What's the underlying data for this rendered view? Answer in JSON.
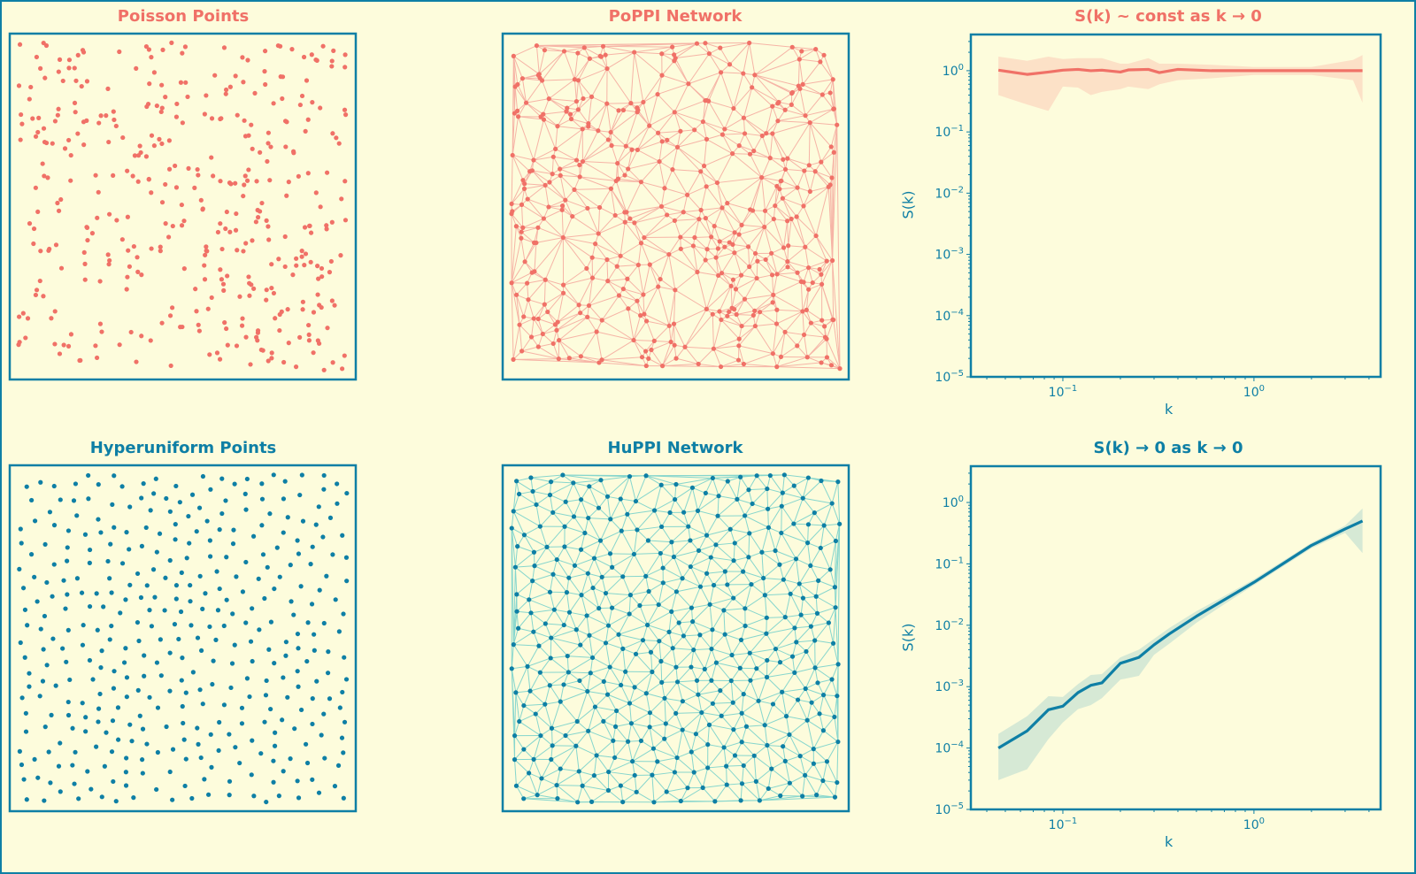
{
  "colors": {
    "background": "#fdfcdc",
    "poisson": "#f07167",
    "poisson_edge": "#f6b4a6",
    "poisson_band": "#fcdcc3",
    "hyperuniform": "#0e7fa5",
    "hu_edge": "#86d6cd",
    "hu_band": "#cfe5d3",
    "frame": "#0e7fa5"
  },
  "chart_data": [
    {
      "type": "scatter",
      "title": "Poisson Points",
      "point_count": 400,
      "distribution": "uniform random (Poisson)",
      "axes_visible": false
    },
    {
      "type": "network",
      "title": "PoPPI Network",
      "point_count": 400,
      "edges": "Delaunay triangulation",
      "axes_visible": false
    },
    {
      "type": "line",
      "title": "S(k) ~ const as k → 0",
      "xlabel": "k",
      "ylabel": "S(k)",
      "xscale": "log",
      "yscale": "log",
      "xlim": [
        0.033,
        4.6
      ],
      "ylim": [
        1e-05,
        3.9
      ],
      "xticks": [
        {
          "value": 0.1,
          "base": "10",
          "exp": "−1"
        },
        {
          "value": 1,
          "base": "10",
          "exp": "0"
        }
      ],
      "yticks": [
        {
          "value": 1,
          "base": "10",
          "exp": "0"
        },
        {
          "value": 0.1,
          "base": "10",
          "exp": "−1"
        },
        {
          "value": 0.01,
          "base": "10",
          "exp": "−2"
        },
        {
          "value": 0.001,
          "base": "10",
          "exp": "−3"
        },
        {
          "value": 0.0001,
          "base": "10",
          "exp": "−4"
        },
        {
          "value": 1e-05,
          "base": "10",
          "exp": "−5"
        }
      ],
      "series": [
        {
          "k": [
            0.046,
            0.065,
            0.084,
            0.1,
            0.12,
            0.14,
            0.16,
            0.2,
            0.22,
            0.28,
            0.32,
            0.4,
            0.6,
            1,
            2,
            3.3,
            3.7
          ],
          "S": [
            1.02,
            0.87,
            0.95,
            1.02,
            1.05,
            1.0,
            1.02,
            0.95,
            1.03,
            1.05,
            0.93,
            1.05,
            1.0,
            1.0,
            1.0,
            1.0,
            1.0
          ],
          "lower": [
            0.4,
            0.28,
            0.22,
            0.55,
            0.53,
            0.4,
            0.45,
            0.5,
            0.55,
            0.5,
            0.6,
            0.7,
            0.75,
            0.85,
            0.85,
            0.7,
            0.3
          ],
          "upper": [
            1.7,
            1.45,
            1.7,
            1.55,
            1.6,
            1.6,
            1.6,
            1.3,
            1.3,
            1.6,
            1.3,
            1.3,
            1.25,
            1.15,
            1.15,
            1.5,
            1.8
          ]
        }
      ]
    },
    {
      "type": "scatter",
      "title": "Hyperuniform Points",
      "point_count": 380,
      "distribution": "hyperuniform",
      "axes_visible": false
    },
    {
      "type": "network",
      "title": "HuPPI Network",
      "point_count": 380,
      "edges": "Delaunay triangulation",
      "axes_visible": false
    },
    {
      "type": "line",
      "title": "S(k) → 0 as k → 0",
      "xlabel": "k",
      "ylabel": "S(k)",
      "xscale": "log",
      "yscale": "log",
      "xlim": [
        0.033,
        4.6
      ],
      "ylim": [
        1e-05,
        3.9
      ],
      "xticks": [
        {
          "value": 0.1,
          "base": "10",
          "exp": "−1"
        },
        {
          "value": 1,
          "base": "10",
          "exp": "0"
        }
      ],
      "yticks": [
        {
          "value": 1,
          "base": "10",
          "exp": "0"
        },
        {
          "value": 0.1,
          "base": "10",
          "exp": "−1"
        },
        {
          "value": 0.01,
          "base": "10",
          "exp": "−2"
        },
        {
          "value": 0.001,
          "base": "10",
          "exp": "−3"
        },
        {
          "value": 0.0001,
          "base": "10",
          "exp": "−4"
        },
        {
          "value": 1e-05,
          "base": "10",
          "exp": "−5"
        }
      ],
      "series": [
        {
          "k": [
            0.046,
            0.065,
            0.084,
            0.1,
            0.12,
            0.14,
            0.16,
            0.2,
            0.25,
            0.3,
            0.36,
            0.5,
            0.7,
            1,
            2,
            3,
            3.7
          ],
          "S": [
            0.0001,
            0.00019,
            0.00042,
            0.00048,
            0.0008,
            0.00105,
            0.00115,
            0.0024,
            0.003,
            0.0048,
            0.0072,
            0.014,
            0.026,
            0.05,
            0.2,
            0.37,
            0.5
          ],
          "lower": [
            3e-05,
            4.5e-05,
            0.00014,
            0.00026,
            0.00043,
            0.0005,
            0.00065,
            0.0013,
            0.0015,
            0.0033,
            0.005,
            0.011,
            0.022,
            0.045,
            0.18,
            0.32,
            0.15
          ],
          "upper": [
            0.00017,
            0.00033,
            0.0007,
            0.00068,
            0.0011,
            0.00155,
            0.0016,
            0.003,
            0.004,
            0.006,
            0.009,
            0.017,
            0.03,
            0.056,
            0.22,
            0.42,
            0.8
          ]
        }
      ]
    }
  ]
}
